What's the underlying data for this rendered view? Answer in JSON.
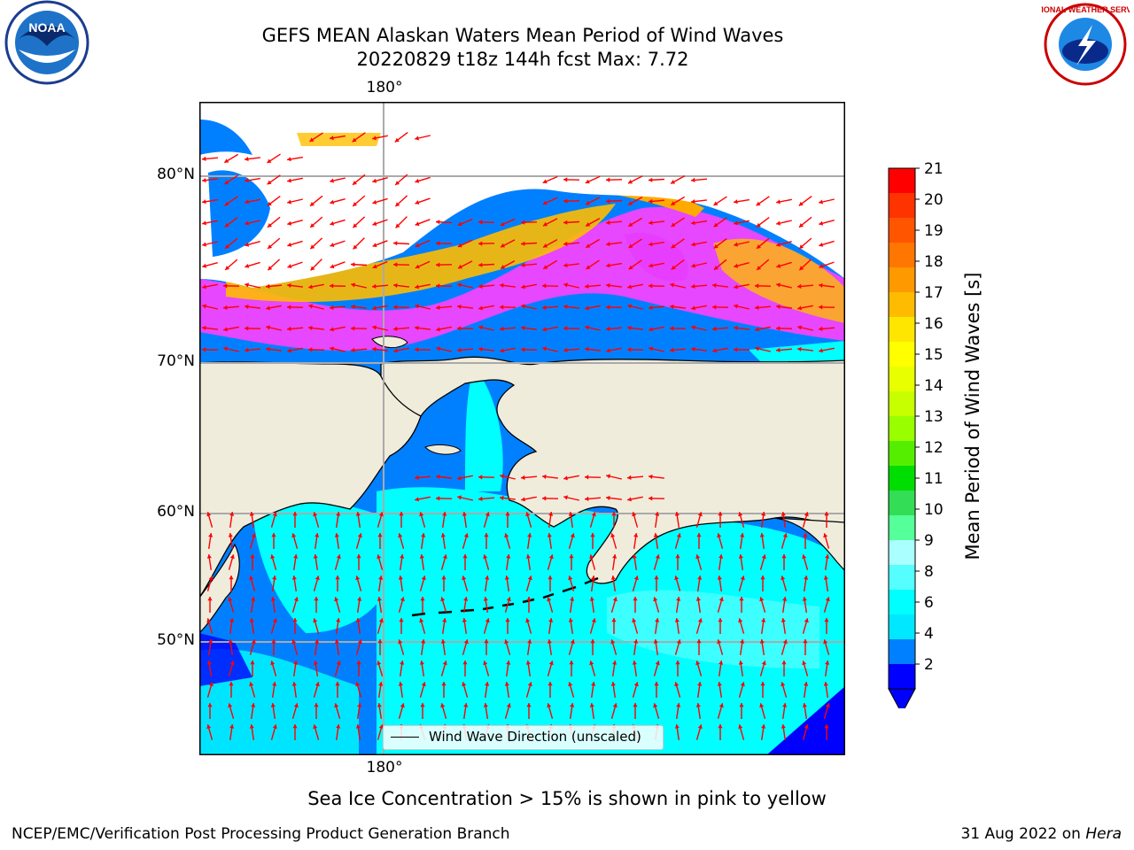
{
  "title_line1": "GEFS MEAN Alaskan Waters Mean Period of Wind Waves",
  "title_line2": "20220829 t18z 144h fcst   Max: 7.72",
  "lon_label_top": "180°",
  "lon_label_bottom": "180°",
  "lat_labels": [
    "80°N",
    "70°N",
    "60°N",
    "50°N"
  ],
  "legend_label": "Wind Wave Direction (unscaled)",
  "colorbar": {
    "label": "Mean Period of Wind Waves [s]",
    "ticks": [
      "21",
      "20",
      "19",
      "18",
      "17",
      "16",
      "15",
      "14",
      "13",
      "12",
      "11",
      "10",
      "9",
      "8",
      "6",
      "4",
      "2"
    ],
    "colors": [
      "#ff0000",
      "#ff3300",
      "#ff5500",
      "#ff7700",
      "#ff9900",
      "#ffbb00",
      "#ffe600",
      "#ffff00",
      "#e8ff00",
      "#c8ff00",
      "#99ff00",
      "#55ee00",
      "#00dd00",
      "#33dd55",
      "#55ff99",
      "#aaffff",
      "#55ffff",
      "#00ffff",
      "#00e8ff",
      "#0080ff",
      "#0000ff"
    ]
  },
  "ice_note": "Sea Ice Concentration > 15% is shown in pink to yellow",
  "credit": "NCEP/EMC/Verification Post Processing Product Generation Branch",
  "date_text": "31 Aug 2022 on",
  "machine": "Hera",
  "logos": {
    "left": "NOAA",
    "right": "NATIONAL WEATHER SERVICE"
  }
}
